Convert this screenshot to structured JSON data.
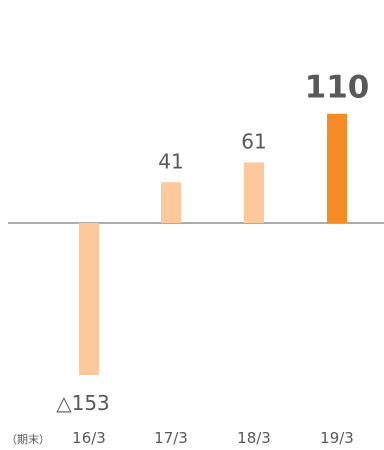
{
  "chart_data": {
    "type": "bar",
    "categories": [
      "16/3",
      "17/3",
      "18/3",
      "19/3"
    ],
    "values": [
      -153,
      41,
      61,
      110
    ],
    "data_labels": [
      "△153",
      "41",
      "61",
      "110"
    ],
    "highlight_index": 3,
    "unit_label": "（期末）",
    "xlabel": "",
    "ylabel": "",
    "ylim": [
      -153,
      110
    ],
    "grid": false,
    "legend": "none",
    "colors": {
      "bar": "#fdc89b",
      "highlight": "#f48b25",
      "axis": "#595959",
      "text": "#595959"
    }
  }
}
